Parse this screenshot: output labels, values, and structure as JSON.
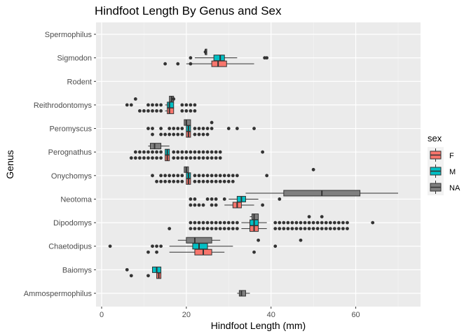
{
  "chart_data": {
    "type": "boxplot",
    "title": "Hindfoot Length By Genus and Sex",
    "xlabel": "Hindfoot Length (mm)",
    "ylabel": "Genus",
    "xlim": [
      0,
      70
    ],
    "x_ticks": [
      0,
      20,
      40,
      60
    ],
    "grid": true,
    "legend": {
      "title": "sex",
      "position": "right",
      "entries": [
        {
          "name": "F",
          "color": "#F8766D"
        },
        {
          "name": "M",
          "color": "#00BFC4"
        },
        {
          "name": "NA",
          "color": "#7F7F7F"
        }
      ]
    },
    "categories": [
      "Spermophilus",
      "Sigmodon",
      "Rodent",
      "Reithrodontomys",
      "Peromyscus",
      "Perognathus",
      "Onychomys",
      "Neotoma",
      "Dipodomys",
      "Chaetodipus",
      "Baiomys",
      "Ammospermophilus"
    ],
    "boxes": [
      {
        "genus": "Sigmodon",
        "sex": "F",
        "min": 20,
        "q1": 26,
        "median": 27.5,
        "q3": 29.5,
        "max": 36
      },
      {
        "genus": "Sigmodon",
        "sex": "M",
        "min": 22,
        "q1": 26.5,
        "median": 28,
        "q3": 29,
        "max": 32
      },
      {
        "genus": "Sigmodon",
        "sex": "NA",
        "min": 24.5,
        "q1": 24.5,
        "median": 24.5,
        "q3": 24.5,
        "max": 24.5
      },
      {
        "genus": "Reithrodontomys",
        "sex": "F",
        "min": 15,
        "q1": 15.5,
        "median": 16,
        "q3": 17,
        "max": 17
      },
      {
        "genus": "Reithrodontomys",
        "sex": "M",
        "min": 15,
        "q1": 15.5,
        "median": 16,
        "q3": 17,
        "max": 17
      },
      {
        "genus": "Reithrodontomys",
        "sex": "NA",
        "min": 16,
        "q1": 16,
        "median": 16.5,
        "q3": 17,
        "max": 17
      },
      {
        "genus": "Peromyscus",
        "sex": "F",
        "min": 20,
        "q1": 20,
        "median": 20.5,
        "q3": 21,
        "max": 21
      },
      {
        "genus": "Peromyscus",
        "sex": "M",
        "min": 20,
        "q1": 20,
        "median": 20.5,
        "q3": 21,
        "max": 21
      },
      {
        "genus": "Peromyscus",
        "sex": "NA",
        "min": 19.5,
        "q1": 19.5,
        "median": 20,
        "q3": 21,
        "max": 21
      },
      {
        "genus": "Perognathus",
        "sex": "F",
        "min": 15,
        "q1": 15,
        "median": 15.5,
        "q3": 16,
        "max": 16
      },
      {
        "genus": "Perognathus",
        "sex": "M",
        "min": 15,
        "q1": 15,
        "median": 15.5,
        "q3": 16,
        "max": 16
      },
      {
        "genus": "Perognathus",
        "sex": "NA",
        "min": 11,
        "q1": 11.5,
        "median": 12.5,
        "q3": 14,
        "max": 16
      },
      {
        "genus": "Onychomys",
        "sex": "F",
        "min": 20,
        "q1": 20,
        "median": 20.5,
        "q3": 21,
        "max": 21
      },
      {
        "genus": "Onychomys",
        "sex": "M",
        "min": 20,
        "q1": 20,
        "median": 20.5,
        "q3": 21,
        "max": 21
      },
      {
        "genus": "Onychomys",
        "sex": "NA",
        "min": 19.5,
        "q1": 19.5,
        "median": 20,
        "q3": 20.5,
        "max": 20.5
      },
      {
        "genus": "Neotoma",
        "sex": "F",
        "min": 29,
        "q1": 31,
        "median": 32,
        "q3": 33,
        "max": 36
      },
      {
        "genus": "Neotoma",
        "sex": "M",
        "min": 30,
        "q1": 32,
        "median": 33,
        "q3": 34,
        "max": 37
      },
      {
        "genus": "Neotoma",
        "sex": "NA",
        "min": 34,
        "q1": 43,
        "median": 52,
        "q3": 61,
        "max": 70
      },
      {
        "genus": "Dipodomys",
        "sex": "F",
        "min": 33,
        "q1": 35,
        "median": 36,
        "q3": 37,
        "max": 39
      },
      {
        "genus": "Dipodomys",
        "sex": "M",
        "min": 33,
        "q1": 35,
        "median": 36,
        "q3": 37,
        "max": 39
      },
      {
        "genus": "Dipodomys",
        "sex": "NA",
        "min": 35,
        "q1": 35.5,
        "median": 36,
        "q3": 37,
        "max": 37
      },
      {
        "genus": "Chaetodipus",
        "sex": "F",
        "min": 16,
        "q1": 22,
        "median": 24,
        "q3": 26,
        "max": 29
      },
      {
        "genus": "Chaetodipus",
        "sex": "M",
        "min": 16,
        "q1": 21.5,
        "median": 23,
        "q3": 25,
        "max": 31
      },
      {
        "genus": "Chaetodipus",
        "sex": "NA",
        "min": 18,
        "q1": 20,
        "median": 22,
        "q3": 26,
        "max": 28
      },
      {
        "genus": "Baiomys",
        "sex": "F",
        "min": 13,
        "q1": 13,
        "median": 13.5,
        "q3": 14,
        "max": 14
      },
      {
        "genus": "Baiomys",
        "sex": "M",
        "min": 12,
        "q1": 12,
        "median": 13,
        "q3": 14,
        "max": 14
      },
      {
        "genus": "Ammospermophilus",
        "sex": "NA",
        "min": 32,
        "q1": 32.5,
        "median": 33,
        "q3": 34,
        "max": 35
      }
    ],
    "outliers": [
      {
        "genus": "Sigmodon",
        "sex": "F",
        "values": [
          15,
          18,
          21
        ]
      },
      {
        "genus": "Sigmodon",
        "sex": "M",
        "values": [
          21,
          38.5,
          39
        ]
      },
      {
        "genus": "Sigmodon",
        "sex": "NA",
        "values": [
          24.5
        ]
      },
      {
        "genus": "Reithrodontomys",
        "sex": "F",
        "values": [
          9,
          10,
          11,
          12,
          13,
          14,
          19,
          20,
          21,
          22
        ]
      },
      {
        "genus": "Reithrodontomys",
        "sex": "M",
        "values": [
          6,
          7,
          11,
          12,
          13,
          14,
          19,
          20,
          21,
          22
        ]
      },
      {
        "genus": "Reithrodontomys",
        "sex": "NA",
        "values": [
          8,
          17
        ]
      },
      {
        "genus": "Peromyscus",
        "sex": "F",
        "values": [
          12,
          14,
          15,
          16,
          17,
          18,
          19,
          22,
          23,
          24,
          25
        ]
      },
      {
        "genus": "Peromyscus",
        "sex": "M",
        "values": [
          11,
          12,
          14,
          16,
          17,
          18,
          19,
          22,
          23,
          24,
          25,
          26,
          30,
          32,
          36
        ]
      },
      {
        "genus": "Peromyscus",
        "sex": "NA",
        "values": [
          26
        ]
      },
      {
        "genus": "Perognathus",
        "sex": "F",
        "values": [
          7,
          8,
          9,
          10,
          11,
          12,
          13,
          14,
          17,
          18,
          19,
          20,
          21,
          22,
          23,
          24,
          25,
          26,
          27,
          28
        ]
      },
      {
        "genus": "Perognathus",
        "sex": "M",
        "values": [
          8,
          9,
          10,
          11,
          12,
          13,
          14,
          17,
          18,
          19,
          20,
          21,
          22,
          23,
          24,
          25,
          26,
          27,
          28,
          38
        ]
      },
      {
        "genus": "Onychomys",
        "sex": "F",
        "values": [
          13,
          14,
          15,
          16,
          17,
          18,
          19,
          22,
          23,
          24,
          25,
          26,
          27,
          28,
          29,
          30,
          31
        ]
      },
      {
        "genus": "Onychomys",
        "sex": "M",
        "values": [
          12,
          14,
          15,
          16,
          17,
          18,
          19,
          22,
          23,
          24,
          25,
          26,
          27,
          28,
          29,
          30,
          31,
          32,
          39
        ]
      },
      {
        "genus": "Onychomys",
        "sex": "NA",
        "values": [
          50
        ]
      },
      {
        "genus": "Neotoma",
        "sex": "F",
        "values": [
          21,
          22,
          23,
          24,
          26,
          27,
          38
        ]
      },
      {
        "genus": "Neotoma",
        "sex": "M",
        "values": [
          21,
          22,
          25,
          26,
          27,
          29,
          42
        ]
      },
      {
        "genus": "Dipodomys",
        "sex": "F",
        "values": [
          16,
          21,
          22,
          23,
          24,
          25,
          26,
          27,
          28,
          29,
          30,
          31,
          32,
          41,
          42,
          43,
          44,
          45,
          46,
          47,
          48,
          49,
          50,
          51,
          52,
          53,
          54,
          55,
          56,
          57,
          58
        ]
      },
      {
        "genus": "Dipodomys",
        "sex": "M",
        "values": [
          21,
          22,
          23,
          24,
          25,
          26,
          27,
          28,
          29,
          30,
          31,
          32,
          41,
          42,
          43,
          44,
          45,
          46,
          47,
          48,
          49,
          50,
          51,
          52,
          53,
          54,
          55,
          56,
          57,
          58,
          64
        ]
      },
      {
        "genus": "Dipodomys",
        "sex": "NA",
        "values": [
          49,
          52
        ]
      },
      {
        "genus": "Chaetodipus",
        "sex": "F",
        "values": [
          11,
          13,
          36
        ]
      },
      {
        "genus": "Chaetodipus",
        "sex": "M",
        "values": [
          2,
          12,
          13,
          14,
          41
        ]
      },
      {
        "genus": "Chaetodipus",
        "sex": "NA",
        "values": [
          37,
          47
        ]
      },
      {
        "genus": "Baiomys",
        "sex": "F",
        "values": [
          7,
          11
        ]
      },
      {
        "genus": "Baiomys",
        "sex": "M",
        "values": [
          6
        ]
      }
    ]
  }
}
